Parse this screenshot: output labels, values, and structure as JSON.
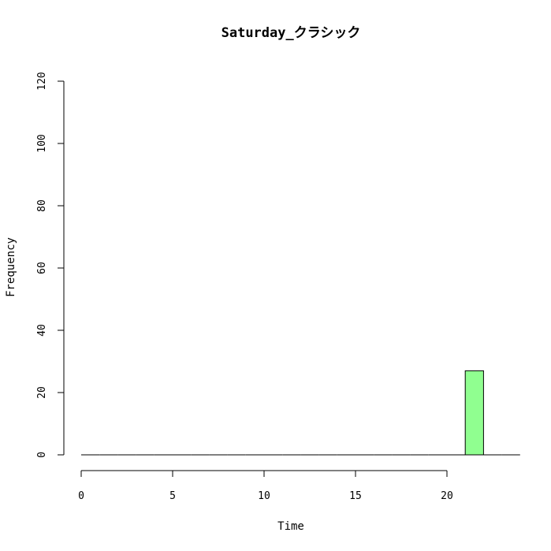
{
  "chart_data": {
    "type": "bar",
    "title": "Saturday_クラシック",
    "xlabel": "Time",
    "ylabel": "Frequency",
    "xlim": [
      0,
      24
    ],
    "ylim": [
      0,
      120
    ],
    "x_ticks": [
      0,
      5,
      10,
      15,
      20
    ],
    "y_ticks": [
      0,
      20,
      40,
      60,
      80,
      100,
      120
    ],
    "bins": [
      {
        "start": 0,
        "end": 1,
        "count": 0
      },
      {
        "start": 1,
        "end": 2,
        "count": 0
      },
      {
        "start": 2,
        "end": 3,
        "count": 0
      },
      {
        "start": 3,
        "end": 4,
        "count": 0
      },
      {
        "start": 4,
        "end": 5,
        "count": 0
      },
      {
        "start": 5,
        "end": 6,
        "count": 0
      },
      {
        "start": 6,
        "end": 7,
        "count": 0
      },
      {
        "start": 7,
        "end": 8,
        "count": 0
      },
      {
        "start": 8,
        "end": 9,
        "count": 0
      },
      {
        "start": 9,
        "end": 10,
        "count": 0
      },
      {
        "start": 10,
        "end": 11,
        "count": 0
      },
      {
        "start": 11,
        "end": 12,
        "count": 0
      },
      {
        "start": 12,
        "end": 13,
        "count": 0
      },
      {
        "start": 13,
        "end": 14,
        "count": 0
      },
      {
        "start": 14,
        "end": 15,
        "count": 0
      },
      {
        "start": 15,
        "end": 16,
        "count": 0
      },
      {
        "start": 16,
        "end": 17,
        "count": 0
      },
      {
        "start": 17,
        "end": 18,
        "count": 0
      },
      {
        "start": 18,
        "end": 19,
        "count": 0
      },
      {
        "start": 19,
        "end": 20,
        "count": 0
      },
      {
        "start": 20,
        "end": 21,
        "count": 0
      },
      {
        "start": 21,
        "end": 22,
        "count": 27
      },
      {
        "start": 22,
        "end": 23,
        "count": 0
      },
      {
        "start": 23,
        "end": 24,
        "count": 0
      }
    ],
    "bar_color": "#90FF90",
    "grid": false
  }
}
